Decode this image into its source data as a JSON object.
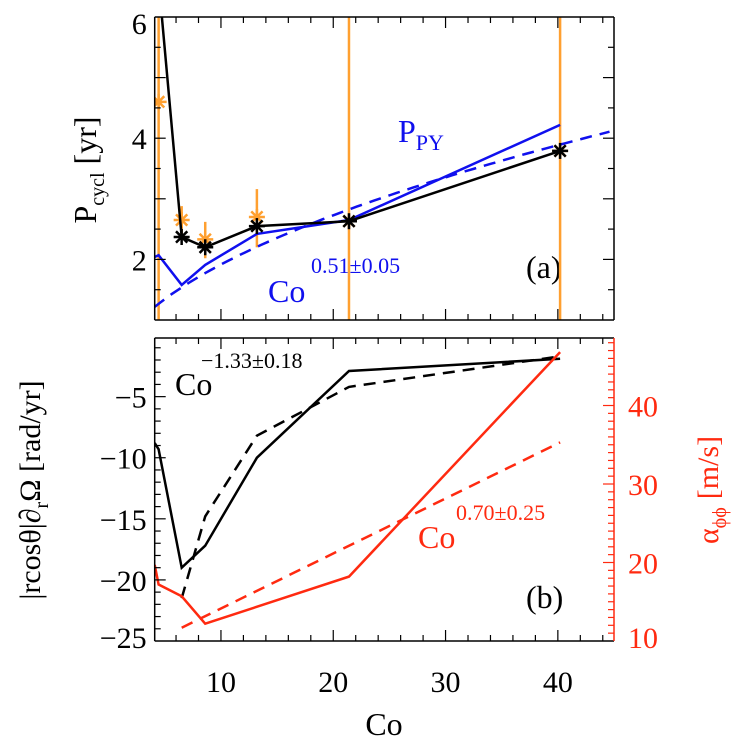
{
  "colors": {
    "black": "#000000",
    "blue": "#1010ee",
    "orange": "#ffa030",
    "red": "#ff2a10"
  },
  "chart_data": [
    {
      "type": "line",
      "panel_label": "(a)",
      "xlim": [
        4.1,
        45
      ],
      "ylim": [
        1,
        6
      ],
      "ylabel": "P",
      "ylabel_sub": "cycl",
      "ylabel_unit": "[yr]",
      "yticks": [
        "2",
        "4",
        "6"
      ],
      "ytick_values": [
        2,
        4,
        6
      ],
      "series": [
        {
          "style": "solid-asterisk",
          "color": "black",
          "x": [
            4.45,
            6.5,
            8.6,
            13.2,
            21.4,
            40.2
          ],
          "y": [
            6.6,
            2.37,
            2.2,
            2.55,
            2.63,
            3.79
          ]
        },
        {
          "name_main": "P",
          "name_sub": "PY",
          "style": "solid",
          "color": "blue",
          "x": [
            4.1,
            4.45,
            6.5,
            8.6,
            13.2,
            21.4,
            40.2
          ],
          "y": [
            2.04,
            2.07,
            1.58,
            1.91,
            2.42,
            2.65,
            4.22
          ]
        },
        {
          "style": "asterisk-errorbar",
          "color": "orange",
          "x": [
            4.45,
            6.5,
            8.6,
            13.2,
            21.4,
            40.2
          ],
          "y": [
            4.6,
            2.65,
            2.33,
            2.7,
            2.63,
            3.79
          ],
          "err_low": [
            0,
            2.4,
            2.02,
            2.2,
            0,
            0
          ],
          "err_high": [
            7,
            2.88,
            2.62,
            3.16,
            7,
            7
          ]
        }
      ],
      "fit": {
        "style": "dashed",
        "color": "blue",
        "label_base": "Co",
        "label_exponent": "0.51±0.05",
        "exponent": 0.51,
        "coefficient": 0.592
      }
    },
    {
      "type": "line",
      "panel_label": "(b)",
      "xlim": [
        4.1,
        45
      ],
      "xlabel": "Co",
      "xticks": [
        "10",
        "20",
        "30",
        "40"
      ],
      "xtick_values": [
        10,
        20,
        30,
        40
      ],
      "ylim_left": [
        -25,
        -0.2
      ],
      "ylabel_left": "|rcosθ|∂",
      "ylabel_left_sub": "r",
      "ylabel_left_rest": "Ω [rad/yr]",
      "yticks_left": [
        "−5",
        "−10",
        "−15",
        "−20",
        "−25"
      ],
      "ytick_left_values": [
        -5,
        -10,
        -15,
        -20,
        -25
      ],
      "ylim_right": [
        10,
        48.6
      ],
      "ylabel_right": "α",
      "ylabel_right_sub": "ϕϕ",
      "ylabel_right_unit": "[m/s]",
      "yticks_right": [
        "10",
        "20",
        "30",
        "40"
      ],
      "ytick_right_values": [
        10,
        20,
        30,
        40
      ],
      "series": [
        {
          "axis": "left",
          "style": "solid",
          "color": "black",
          "x": [
            4.1,
            4.45,
            6.5,
            8.6,
            13.2,
            21.4,
            40.2
          ],
          "y": [
            -8.8,
            -9.3,
            -19.0,
            -17.2,
            -10.0,
            -2.9,
            -1.9
          ]
        },
        {
          "axis": "left",
          "style": "dashed",
          "color": "black",
          "label_base": "Co",
          "label_exponent": "−1.33±0.18",
          "x": [
            6.5,
            8.6,
            13.2,
            21.4,
            40.2
          ],
          "y": [
            -21.5,
            -14.8,
            -8.2,
            -4.2,
            -1.7
          ]
        },
        {
          "axis": "right",
          "style": "solid",
          "color": "red",
          "x": [
            4.1,
            4.45,
            6.5,
            8.6,
            21.4,
            40.2
          ],
          "y": [
            19.7,
            17.2,
            15.7,
            12.2,
            18.2,
            46.8
          ]
        },
        {
          "axis": "right",
          "style": "dashed",
          "color": "red",
          "label_base": "Co",
          "label_exponent": "0.70±0.25",
          "x": [
            6.5,
            40.2
          ],
          "y": [
            11.7,
            35.3
          ]
        }
      ]
    }
  ]
}
